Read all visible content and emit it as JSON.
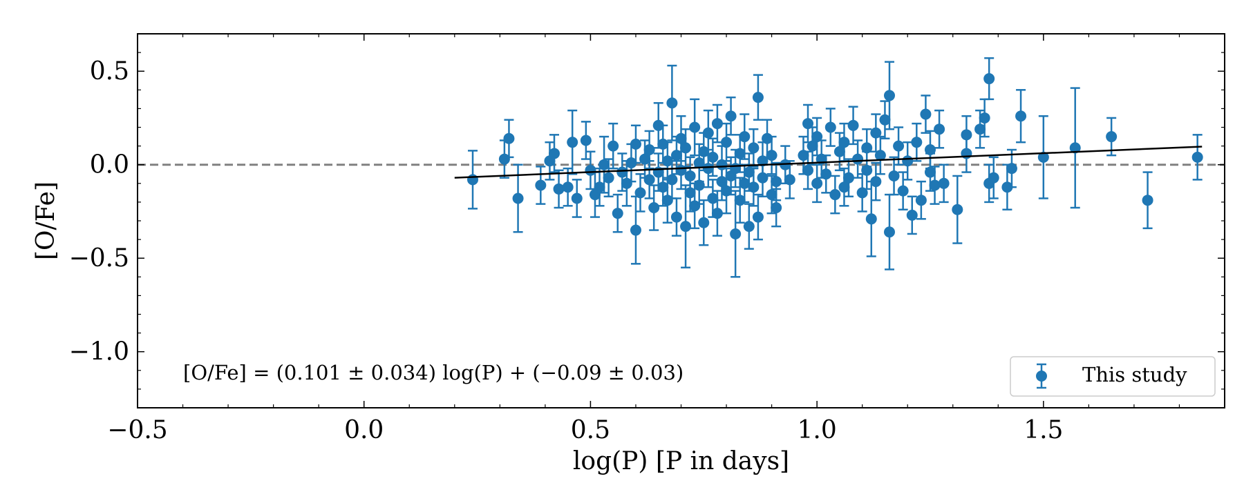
{
  "chart_data": {
    "type": "scatter",
    "title": "",
    "xlabel": "log(P) [P in days]",
    "ylabel": "[O/Fe]",
    "xlim": [
      -0.5,
      1.9
    ],
    "ylim": [
      -1.3,
      0.7
    ],
    "x_ticks": [
      -0.5,
      0.0,
      0.5,
      1.0,
      1.5
    ],
    "x_tick_labels": [
      "−0.5",
      "0.0",
      "0.5",
      "1.0",
      "1.5"
    ],
    "y_ticks": [
      0.5,
      0.0,
      -0.5,
      -1.0
    ],
    "y_tick_labels": [
      "0.5",
      "0.0",
      "−0.5",
      "−1.0"
    ],
    "legend": {
      "label": "This study",
      "position": "lower-right"
    },
    "annotation": "[O/Fe] = (0.101 ± 0.034) log(P) + (−0.09 ± 0.03)",
    "reference_line": {
      "y": 0.0,
      "style": "dashed",
      "color": "#808080"
    },
    "fit": {
      "slope": 0.101,
      "intercept": -0.09,
      "x_start": 0.2,
      "x_end": 1.85,
      "color": "#000000"
    },
    "colors": {
      "points": "#1f77b4"
    },
    "series": [
      {
        "name": "This study",
        "points": [
          {
            "x": 0.24,
            "y": -0.08,
            "err": 0.155
          },
          {
            "x": 0.31,
            "y": 0.03,
            "err": 0.1
          },
          {
            "x": 0.32,
            "y": 0.14,
            "err": 0.1
          },
          {
            "x": 0.34,
            "y": -0.18,
            "err": 0.18
          },
          {
            "x": 0.39,
            "y": -0.11,
            "err": 0.1
          },
          {
            "x": 0.41,
            "y": 0.02,
            "err": 0.1
          },
          {
            "x": 0.42,
            "y": 0.06,
            "err": 0.1
          },
          {
            "x": 0.43,
            "y": -0.13,
            "err": 0.1
          },
          {
            "x": 0.45,
            "y": -0.12,
            "err": 0.1
          },
          {
            "x": 0.46,
            "y": 0.12,
            "err": 0.17
          },
          {
            "x": 0.47,
            "y": -0.18,
            "err": 0.1
          },
          {
            "x": 0.49,
            "y": 0.13,
            "err": 0.1
          },
          {
            "x": 0.5,
            "y": -0.03,
            "err": 0.1
          },
          {
            "x": 0.51,
            "y": -0.16,
            "err": 0.12
          },
          {
            "x": 0.52,
            "y": -0.12,
            "err": 0.1
          },
          {
            "x": 0.53,
            "y": 0.0,
            "err": 0.15
          },
          {
            "x": 0.54,
            "y": -0.07,
            "err": 0.1
          },
          {
            "x": 0.55,
            "y": 0.1,
            "err": 0.12
          },
          {
            "x": 0.56,
            "y": -0.26,
            "err": 0.1
          },
          {
            "x": 0.57,
            "y": -0.04,
            "err": 0.1
          },
          {
            "x": 0.58,
            "y": -0.1,
            "err": 0.12
          },
          {
            "x": 0.59,
            "y": 0.01,
            "err": 0.1
          },
          {
            "x": 0.6,
            "y": -0.35,
            "err": 0.18
          },
          {
            "x": 0.6,
            "y": 0.11,
            "err": 0.1
          },
          {
            "x": 0.61,
            "y": -0.15,
            "err": 0.1
          },
          {
            "x": 0.62,
            "y": 0.03,
            "err": 0.1
          },
          {
            "x": 0.63,
            "y": -0.08,
            "err": 0.1
          },
          {
            "x": 0.63,
            "y": 0.08,
            "err": 0.1
          },
          {
            "x": 0.64,
            "y": -0.23,
            "err": 0.12
          },
          {
            "x": 0.65,
            "y": 0.21,
            "err": 0.12
          },
          {
            "x": 0.65,
            "y": -0.04,
            "err": 0.1
          },
          {
            "x": 0.66,
            "y": -0.12,
            "err": 0.1
          },
          {
            "x": 0.66,
            "y": 0.11,
            "err": 0.1
          },
          {
            "x": 0.67,
            "y": -0.19,
            "err": 0.12
          },
          {
            "x": 0.67,
            "y": 0.02,
            "err": 0.1
          },
          {
            "x": 0.68,
            "y": 0.33,
            "err": 0.2
          },
          {
            "x": 0.68,
            "y": -0.08,
            "err": 0.1
          },
          {
            "x": 0.69,
            "y": 0.05,
            "err": 0.1
          },
          {
            "x": 0.69,
            "y": -0.28,
            "err": 0.1
          },
          {
            "x": 0.7,
            "y": 0.14,
            "err": 0.12
          },
          {
            "x": 0.7,
            "y": -0.03,
            "err": 0.1
          },
          {
            "x": 0.71,
            "y": -0.33,
            "err": 0.22
          },
          {
            "x": 0.71,
            "y": 0.09,
            "err": 0.1
          },
          {
            "x": 0.72,
            "y": -0.15,
            "err": 0.1
          },
          {
            "x": 0.72,
            "y": -0.06,
            "err": 0.1
          },
          {
            "x": 0.73,
            "y": 0.2,
            "err": 0.15
          },
          {
            "x": 0.73,
            "y": -0.22,
            "err": 0.12
          },
          {
            "x": 0.74,
            "y": 0.01,
            "err": 0.1
          },
          {
            "x": 0.74,
            "y": -0.11,
            "err": 0.1
          },
          {
            "x": 0.75,
            "y": 0.07,
            "err": 0.1
          },
          {
            "x": 0.75,
            "y": -0.31,
            "err": 0.12
          },
          {
            "x": 0.76,
            "y": -0.02,
            "err": 0.1
          },
          {
            "x": 0.76,
            "y": 0.17,
            "err": 0.12
          },
          {
            "x": 0.77,
            "y": -0.18,
            "err": 0.1
          },
          {
            "x": 0.77,
            "y": 0.04,
            "err": 0.1
          },
          {
            "x": 0.78,
            "y": -0.26,
            "err": 0.12
          },
          {
            "x": 0.78,
            "y": 0.22,
            "err": 0.1
          },
          {
            "x": 0.79,
            "y": -0.09,
            "err": 0.1
          },
          {
            "x": 0.79,
            "y": 0.0,
            "err": 0.1
          },
          {
            "x": 0.8,
            "y": -0.14,
            "err": 0.12
          },
          {
            "x": 0.8,
            "y": 0.12,
            "err": 0.1
          },
          {
            "x": 0.81,
            "y": -0.06,
            "err": 0.1
          },
          {
            "x": 0.81,
            "y": 0.26,
            "err": 0.1
          },
          {
            "x": 0.82,
            "y": -0.37,
            "err": 0.23
          },
          {
            "x": 0.82,
            "y": -0.02,
            "err": 0.1
          },
          {
            "x": 0.83,
            "y": -0.19,
            "err": 0.12
          },
          {
            "x": 0.83,
            "y": 0.06,
            "err": 0.1
          },
          {
            "x": 0.84,
            "y": -0.1,
            "err": 0.1
          },
          {
            "x": 0.84,
            "y": 0.15,
            "err": 0.12
          },
          {
            "x": 0.85,
            "y": -0.33,
            "err": 0.12
          },
          {
            "x": 0.85,
            "y": -0.04,
            "err": 0.1
          },
          {
            "x": 0.86,
            "y": 0.09,
            "err": 0.1
          },
          {
            "x": 0.86,
            "y": -0.12,
            "err": 0.1
          },
          {
            "x": 0.87,
            "y": 0.36,
            "err": 0.12
          },
          {
            "x": 0.87,
            "y": -0.28,
            "err": 0.12
          },
          {
            "x": 0.88,
            "y": 0.02,
            "err": 0.1
          },
          {
            "x": 0.88,
            "y": -0.07,
            "err": 0.1
          },
          {
            "x": 0.89,
            "y": 0.14,
            "err": 0.1
          },
          {
            "x": 0.9,
            "y": -0.16,
            "err": 0.1
          },
          {
            "x": 0.9,
            "y": 0.05,
            "err": 0.1
          },
          {
            "x": 0.91,
            "y": -0.23,
            "err": 0.1
          },
          {
            "x": 0.91,
            "y": -0.09,
            "err": 0.1
          },
          {
            "x": 0.93,
            "y": 0.0,
            "err": 0.1
          },
          {
            "x": 0.94,
            "y": -0.08,
            "err": 0.1
          },
          {
            "x": 0.97,
            "y": 0.05,
            "err": 0.1
          },
          {
            "x": 0.98,
            "y": 0.22,
            "err": 0.1
          },
          {
            "x": 0.98,
            "y": -0.03,
            "err": 0.1
          },
          {
            "x": 0.99,
            "y": 0.1,
            "err": 0.1
          },
          {
            "x": 1.0,
            "y": -0.1,
            "err": 0.1
          },
          {
            "x": 1.0,
            "y": 0.15,
            "err": 0.1
          },
          {
            "x": 1.01,
            "y": 0.03,
            "err": 0.1
          },
          {
            "x": 1.02,
            "y": -0.05,
            "err": 0.1
          },
          {
            "x": 1.03,
            "y": 0.2,
            "err": 0.1
          },
          {
            "x": 1.04,
            "y": -0.16,
            "err": 0.1
          },
          {
            "x": 1.05,
            "y": 0.07,
            "err": 0.1
          },
          {
            "x": 1.06,
            "y": -0.12,
            "err": 0.1
          },
          {
            "x": 1.06,
            "y": 0.12,
            "err": 0.1
          },
          {
            "x": 1.07,
            "y": -0.07,
            "err": 0.1
          },
          {
            "x": 1.08,
            "y": 0.21,
            "err": 0.1
          },
          {
            "x": 1.09,
            "y": 0.03,
            "err": 0.1
          },
          {
            "x": 1.1,
            "y": -0.15,
            "err": 0.1
          },
          {
            "x": 1.11,
            "y": -0.03,
            "err": 0.1
          },
          {
            "x": 1.11,
            "y": 0.09,
            "err": 0.1
          },
          {
            "x": 1.12,
            "y": -0.29,
            "err": 0.2
          },
          {
            "x": 1.13,
            "y": 0.17,
            "err": 0.1
          },
          {
            "x": 1.13,
            "y": -0.09,
            "err": 0.1
          },
          {
            "x": 1.14,
            "y": 0.05,
            "err": 0.1
          },
          {
            "x": 1.15,
            "y": 0.24,
            "err": 0.1
          },
          {
            "x": 1.16,
            "y": -0.36,
            "err": 0.2
          },
          {
            "x": 1.16,
            "y": 0.37,
            "err": 0.18
          },
          {
            "x": 1.17,
            "y": -0.06,
            "err": 0.1
          },
          {
            "x": 1.18,
            "y": 0.1,
            "err": 0.1
          },
          {
            "x": 1.19,
            "y": -0.14,
            "err": 0.1
          },
          {
            "x": 1.2,
            "y": 0.02,
            "err": 0.1
          },
          {
            "x": 1.21,
            "y": -0.27,
            "err": 0.1
          },
          {
            "x": 1.22,
            "y": 0.12,
            "err": 0.1
          },
          {
            "x": 1.23,
            "y": -0.19,
            "err": 0.1
          },
          {
            "x": 1.24,
            "y": 0.27,
            "err": 0.1
          },
          {
            "x": 1.25,
            "y": -0.04,
            "err": 0.1
          },
          {
            "x": 1.25,
            "y": 0.08,
            "err": 0.1
          },
          {
            "x": 1.26,
            "y": -0.11,
            "err": 0.1
          },
          {
            "x": 1.27,
            "y": 0.19,
            "err": 0.1
          },
          {
            "x": 1.28,
            "y": -0.1,
            "err": 0.1
          },
          {
            "x": 1.31,
            "y": -0.24,
            "err": 0.18
          },
          {
            "x": 1.33,
            "y": 0.06,
            "err": 0.1
          },
          {
            "x": 1.33,
            "y": 0.16,
            "err": 0.1
          },
          {
            "x": 1.36,
            "y": 0.19,
            "err": 0.1
          },
          {
            "x": 1.37,
            "y": 0.25,
            "err": 0.1
          },
          {
            "x": 1.38,
            "y": 0.46,
            "err": 0.11
          },
          {
            "x": 1.38,
            "y": -0.1,
            "err": 0.1
          },
          {
            "x": 1.39,
            "y": -0.07,
            "err": 0.11
          },
          {
            "x": 1.42,
            "y": -0.12,
            "err": 0.12
          },
          {
            "x": 1.43,
            "y": -0.02,
            "err": 0.1
          },
          {
            "x": 1.45,
            "y": 0.26,
            "err": 0.14
          },
          {
            "x": 1.5,
            "y": 0.04,
            "err": 0.22
          },
          {
            "x": 1.57,
            "y": 0.09,
            "err": 0.32
          },
          {
            "x": 1.65,
            "y": 0.15,
            "err": 0.1
          },
          {
            "x": 1.73,
            "y": -0.19,
            "err": 0.15
          },
          {
            "x": 1.84,
            "y": 0.04,
            "err": 0.12
          }
        ]
      }
    ]
  }
}
